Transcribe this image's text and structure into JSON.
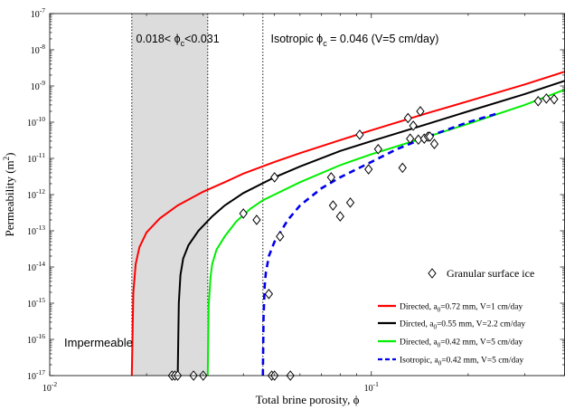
{
  "chart_data": {
    "type": "line",
    "xscale": "log",
    "yscale": "log",
    "xlim": [
      0.01,
      0.4
    ],
    "ylim": [
      1e-17,
      1e-07
    ],
    "xlabel": "Total brine porosity, ϕ",
    "ylabel": "Permeability (m²)",
    "x_major_ticks": [
      {
        "value": 0.01,
        "base": "10",
        "exp": "-2"
      },
      {
        "value": 0.1,
        "base": "10",
        "exp": "-1"
      }
    ],
    "y_major_ticks": [
      {
        "value": 1e-17,
        "base": "10",
        "exp": "-17"
      },
      {
        "value": 1e-16,
        "base": "10",
        "exp": "-16"
      },
      {
        "value": 1e-15,
        "base": "10",
        "exp": "-15"
      },
      {
        "value": 1e-14,
        "base": "10",
        "exp": "-14"
      },
      {
        "value": 1e-13,
        "base": "10",
        "exp": "-13"
      },
      {
        "value": 1e-12,
        "base": "10",
        "exp": "-12"
      },
      {
        "value": 1e-11,
        "base": "10",
        "exp": "-11"
      },
      {
        "value": 1e-10,
        "base": "10",
        "exp": "-10"
      },
      {
        "value": 1e-09,
        "base": "10",
        "exp": "-9"
      },
      {
        "value": 1e-08,
        "base": "10",
        "exp": "-8"
      },
      {
        "value": 1e-07,
        "base": "10",
        "exp": "-7"
      }
    ],
    "shaded_band": {
      "x0": 0.018,
      "x1": 0.031,
      "color": "#dcdcdc"
    },
    "vertical_lines": [
      {
        "x": 0.018,
        "style": "dotted"
      },
      {
        "x": 0.031,
        "style": "dotted"
      },
      {
        "x": 0.046,
        "style": "dotted"
      }
    ],
    "annotations": {
      "band_label": "0.018< ϕc<0.031",
      "isotropic_label": "Isotropic ϕc = 0.046 (V=5 cm/day)",
      "impermeable_label": "Impermeable"
    },
    "series": [
      {
        "name": "Directed, a0=0.72 mm, V=1 cm/day",
        "color": "#ff0000",
        "dash": "solid",
        "x": [
          0.018,
          0.0182,
          0.0185,
          0.019,
          0.02,
          0.022,
          0.025,
          0.03,
          0.035,
          0.04,
          0.05,
          0.06,
          0.08,
          0.1,
          0.15,
          0.2,
          0.3,
          0.4
        ],
        "y": [
          1e-17,
          2e-15,
          1.2e-14,
          3.5e-14,
          9e-14,
          2.2e-13,
          5e-13,
          1.2e-12,
          2.2e-12,
          3.8e-12,
          8e-12,
          1.4e-11,
          3.2e-11,
          6e-11,
          1.8e-10,
          3.8e-10,
          1.1e-09,
          2.5e-09
        ]
      },
      {
        "name": "Dircted, a0=0.55 mm, V=2.2 cm/day",
        "color": "#000000",
        "dash": "solid",
        "x": [
          0.025,
          0.0252,
          0.0255,
          0.026,
          0.027,
          0.029,
          0.032,
          0.035,
          0.04,
          0.05,
          0.06,
          0.08,
          0.1,
          0.15,
          0.2,
          0.3,
          0.4
        ],
        "y": [
          1e-17,
          1e-15,
          6e-15,
          1.7e-14,
          4e-14,
          1e-13,
          2.5e-13,
          5e-13,
          1.1e-12,
          3e-12,
          6e-12,
          1.6e-11,
          3e-11,
          9e-11,
          2e-10,
          6e-10,
          1.4e-09
        ]
      },
      {
        "name": "Directed, a0=0.42 mm, V=5 cm/day",
        "color": "#00ee00",
        "dash": "solid",
        "x": [
          0.031,
          0.0312,
          0.0316,
          0.032,
          0.033,
          0.035,
          0.038,
          0.042,
          0.046,
          0.05,
          0.06,
          0.08,
          0.1,
          0.15,
          0.2,
          0.3,
          0.4
        ],
        "y": [
          1e-17,
          8e-16,
          5e-15,
          1.2e-14,
          3e-14,
          7e-14,
          1.8e-13,
          4e-13,
          7e-13,
          1e-12,
          2.2e-12,
          6.5e-12,
          1.3e-11,
          4e-11,
          9e-11,
          3e-10,
          8e-10
        ]
      },
      {
        "name": "Isotropic, a0=0.42 mm, V=5 cm/day",
        "color": "#0000ee",
        "dash": "dashed",
        "x": [
          0.046,
          0.0462,
          0.0466,
          0.047,
          0.048,
          0.05,
          0.055,
          0.06,
          0.07,
          0.08,
          0.1,
          0.12,
          0.15,
          0.2,
          0.25
        ],
        "y": [
          1e-17,
          4e-16,
          3e-15,
          7e-15,
          2e-14,
          5e-14,
          2e-13,
          5e-13,
          1.5e-12,
          3e-12,
          8e-12,
          1.8e-11,
          4e-11,
          1e-10,
          1.8e-10
        ]
      },
      {
        "name": "Granular surface ice",
        "type": "scatter",
        "marker": "diamond",
        "color": "#000000",
        "x": [
          0.024,
          0.0245,
          0.025,
          0.028,
          0.03,
          0.04,
          0.044,
          0.048,
          0.049,
          0.05,
          0.052,
          0.05,
          0.056,
          0.075,
          0.076,
          0.08,
          0.086,
          0.092,
          0.098,
          0.105,
          0.125,
          0.13,
          0.132,
          0.135,
          0.14,
          0.142,
          0.146,
          0.15,
          0.152,
          0.157,
          0.33,
          0.35,
          0.37
        ],
        "y": [
          1e-17,
          1e-17,
          1e-17,
          1e-17,
          1e-17,
          3e-13,
          2e-13,
          1.8e-15,
          1e-17,
          3e-12,
          7e-14,
          1e-17,
          1e-17,
          3e-12,
          5e-13,
          2.5e-13,
          6e-13,
          4.5e-11,
          5e-12,
          1.8e-11,
          5.5e-12,
          1.3e-10,
          3.5e-11,
          8e-11,
          3.3e-11,
          2e-10,
          3.5e-11,
          4e-11,
          4e-11,
          2.5e-11,
          3.8e-10,
          4.5e-10,
          4.3e-10
        ]
      }
    ],
    "legend": {
      "scatter_entry": "Granular surface ice",
      "line_entries": [
        {
          "prefix": "Directed, a",
          "sub": "0",
          "suffix": "=0.72 mm, V=1 cm/day"
        },
        {
          "prefix": "Dircted, a",
          "sub": "0",
          "suffix": "=0.55 mm, V=2.2 cm/day"
        },
        {
          "prefix": "Directed, a",
          "sub": "0",
          "suffix": "=0.42 mm, V=5 cm/day"
        },
        {
          "prefix": "Isotropic, a",
          "sub": "0",
          "suffix": "=0.42 mm, V=5 cm/day"
        }
      ],
      "placement": "bottom-right"
    }
  }
}
